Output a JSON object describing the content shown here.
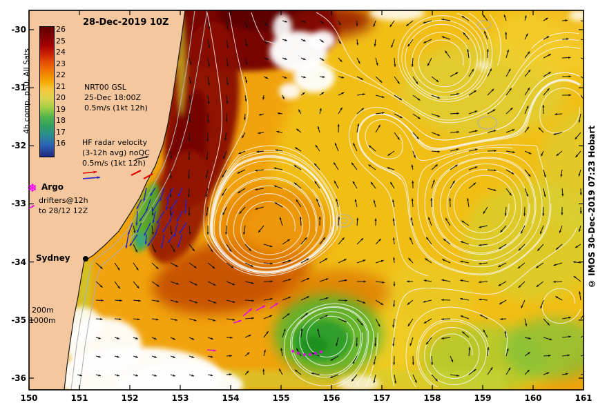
{
  "title": "28-Dec-2019 10Z",
  "copyright": "© IMOS 30-Dec-2019 07:23 Hobart",
  "colorbar": {
    "axis_label": "4h comp, p50, All Sats",
    "ticks": [
      "26",
      "25",
      "24",
      "23",
      "22",
      "21",
      "20",
      "19",
      "18",
      "17",
      "16"
    ]
  },
  "legend": {
    "nrt": {
      "line1": "NRT00 GSL",
      "line2": "25-Dec 18:00Z",
      "line3": "0.5m/s (1kt 12h)"
    },
    "hf": {
      "line1": "HF radar velocity",
      "line2": "(3-12h avg) noQC",
      "line3": "0.5m/s (1kt 12h)"
    },
    "argo_label": "Argo",
    "drifters": {
      "line1": "drifters@12h",
      "line2": "to 28/12 12Z"
    }
  },
  "map_labels": {
    "city": "Sydney",
    "isobath_200": "200m",
    "isobath_1000": "1000m"
  },
  "axes": {
    "x_ticks": [
      "150",
      "151",
      "152",
      "153",
      "154",
      "155",
      "156",
      "157",
      "158",
      "159",
      "160",
      "161"
    ],
    "y_ticks": [
      "-30",
      "-31",
      "-32",
      "-33",
      "-34",
      "-35",
      "-36"
    ]
  },
  "colors": {
    "land": "#f5c79e",
    "eac_core": "#7a0000",
    "argo_marker": "#ee00ee",
    "hf_arrows": "#2222cc",
    "current_arrows": "#141414",
    "ssh_contours": "#f7f7f7"
  }
}
